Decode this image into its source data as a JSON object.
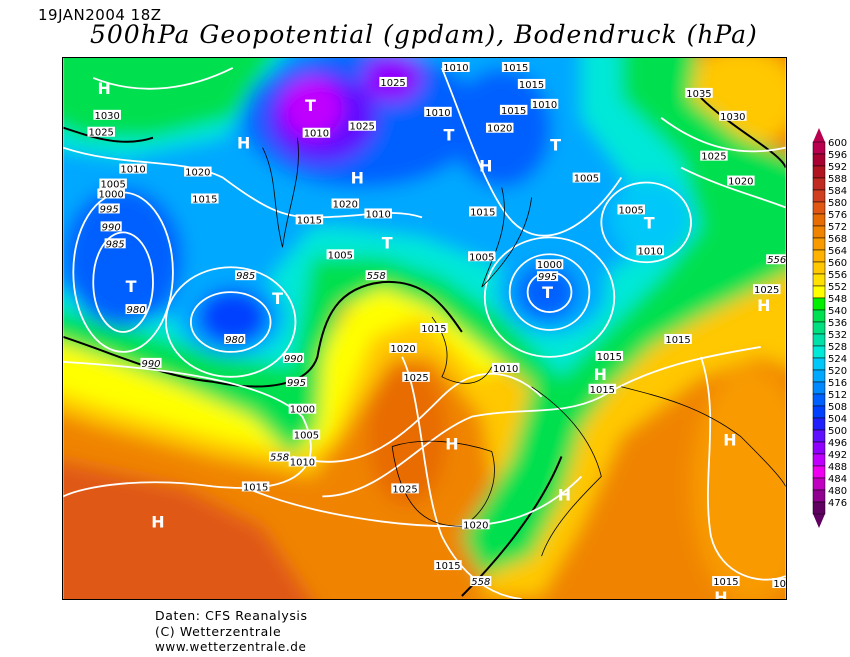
{
  "header": {
    "datetime": "19JAN2004 18Z",
    "title": "500hPa Geopotential (gpdam), Bodendruck (hPa)"
  },
  "footer": {
    "source": "Daten: CFS Reanalysis",
    "copyright": "(C) Wetterzentrale",
    "url": "www.wetterzentrale.de"
  },
  "legend": {
    "unit": "gpdam",
    "labels": [
      "600",
      "596",
      "592",
      "588",
      "584",
      "580",
      "576",
      "572",
      "568",
      "564",
      "560",
      "556",
      "552",
      "548",
      "540",
      "536",
      "532",
      "528",
      "524",
      "520",
      "516",
      "512",
      "508",
      "504",
      "500",
      "496",
      "492",
      "488",
      "484",
      "480",
      "476"
    ],
    "colors": [
      "#b8004e",
      "#a80030",
      "#b01420",
      "#c02a20",
      "#d04020",
      "#e05814",
      "#e86c04",
      "#f08400",
      "#f89a00",
      "#ffb200",
      "#ffc800",
      "#ffe000",
      "#ffff00",
      "#00f000",
      "#00e050",
      "#00e080",
      "#00e0a8",
      "#00e8d8",
      "#00c8f8",
      "#00a8ff",
      "#0088ff",
      "#0060ff",
      "#0040ff",
      "#2020ff",
      "#6010ff",
      "#9000ff",
      "#c000ff",
      "#f000f0",
      "#c000c0",
      "#900090",
      "#600060"
    ]
  },
  "map": {
    "pressure_labels": [
      "1030",
      "1025",
      "1010",
      "1005",
      "1000",
      "995",
      "990",
      "985",
      "980",
      "985",
      "980",
      "990",
      "990",
      "995",
      "1000",
      "1005",
      "1010",
      "558",
      "1015",
      "1020",
      "1015",
      "1010",
      "1025",
      "1025",
      "1020",
      "1010",
      "1015",
      "1005",
      "558",
      "1010",
      "1015",
      "1015",
      "1010",
      "1015",
      "1010",
      "1020",
      "1015",
      "1005",
      "1000",
      "995",
      "1005",
      "1005",
      "1010",
      "1035",
      "1030",
      "1025",
      "1020",
      "556",
      "1025",
      "1015",
      "1020",
      "1025",
      "1010",
      "1015",
      "1015",
      "1015",
      "1025",
      "1020",
      "1015",
      "558",
      "1015",
      "10"
    ],
    "centers": [
      "H",
      "H",
      "T",
      "H",
      "T",
      "H",
      "T",
      "T",
      "T",
      "T",
      "T",
      "T",
      "H",
      "H",
      "H",
      "H",
      "H",
      "H",
      "H"
    ]
  }
}
